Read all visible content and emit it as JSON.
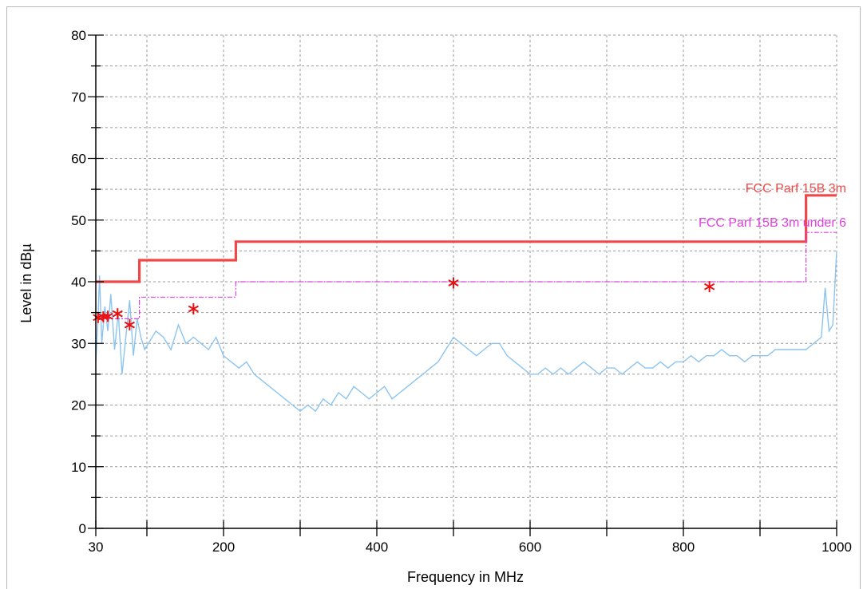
{
  "chart_data": {
    "type": "line",
    "xlabel": "Frequency in MHz",
    "ylabel": "Level in dBµ",
    "x_ticks": [
      {
        "value": 30,
        "label": "30"
      },
      {
        "value": 200,
        "label": "200"
      },
      {
        "value": 400,
        "label": "400"
      },
      {
        "value": 600,
        "label": "600"
      },
      {
        "value": 800,
        "label": "800"
      },
      {
        "value": 1000,
        "label": "1000"
      }
    ],
    "y_ticks": [
      0,
      10,
      20,
      30,
      40,
      50,
      60,
      70,
      80
    ],
    "xlim": [
      30,
      1000
    ],
    "ylim": [
      0,
      80
    ],
    "grid": true,
    "colors": {
      "spectrum": "#8cc4f0",
      "limit": "#f04848",
      "limit_under": "#e040e0",
      "peaks": "#e81010"
    },
    "series": [
      {
        "name": "FCC Parf 15B 3m",
        "style": "step",
        "x": [
          30,
          88,
          88,
          216,
          216,
          960,
          960,
          1000
        ],
        "y": [
          40,
          40,
          43.5,
          43.5,
          46.5,
          46.5,
          54,
          54
        ]
      },
      {
        "name": "FCC Parf 15B 3m under 6",
        "style": "dashdot-step",
        "x": [
          30,
          88,
          88,
          216,
          216,
          960,
          960,
          1000
        ],
        "y": [
          34,
          34,
          37.5,
          37.5,
          40,
          40,
          48,
          48
        ]
      },
      {
        "name": "",
        "style": "spectrum",
        "x": [
          30,
          33,
          35,
          38,
          42,
          46,
          50,
          55,
          60,
          65,
          70,
          75,
          80,
          85,
          90,
          95,
          100,
          110,
          120,
          130,
          140,
          150,
          160,
          170,
          180,
          190,
          200,
          210,
          220,
          230,
          240,
          250,
          260,
          270,
          280,
          290,
          300,
          310,
          320,
          330,
          340,
          350,
          360,
          370,
          380,
          390,
          400,
          410,
          420,
          430,
          440,
          450,
          460,
          470,
          480,
          490,
          500,
          510,
          520,
          530,
          540,
          550,
          560,
          570,
          580,
          590,
          600,
          610,
          620,
          630,
          640,
          650,
          660,
          670,
          680,
          690,
          700,
          710,
          720,
          730,
          740,
          750,
          760,
          770,
          780,
          790,
          800,
          810,
          820,
          830,
          840,
          850,
          860,
          870,
          880,
          890,
          900,
          910,
          920,
          930,
          940,
          950,
          960,
          970,
          980,
          985,
          990,
          995,
          1000
        ],
        "y": [
          27,
          34,
          41,
          30,
          36,
          32,
          38,
          29,
          35,
          25,
          31,
          37,
          28,
          34,
          31,
          29,
          30,
          32,
          31,
          29,
          33,
          30,
          31,
          30,
          29,
          31,
          28,
          27,
          26,
          27,
          25,
          24,
          23,
          22,
          21,
          20,
          19,
          20,
          19,
          21,
          20,
          22,
          21,
          23,
          22,
          21,
          22,
          23,
          21,
          22,
          23,
          24,
          25,
          26,
          27,
          29,
          31,
          30,
          29,
          28,
          29,
          30,
          30,
          28,
          27,
          26,
          25,
          25,
          26,
          25,
          26,
          25,
          26,
          27,
          26,
          25,
          26,
          26,
          25,
          26,
          27,
          26,
          26,
          27,
          26,
          27,
          27,
          28,
          27,
          28,
          28,
          29,
          28,
          28,
          27,
          28,
          28,
          28,
          29,
          29,
          29,
          29,
          29,
          30,
          31,
          39,
          32,
          33,
          45
        ]
      }
    ],
    "peaks": {
      "x": [
        33,
        40,
        46,
        59,
        75,
        160,
        500,
        834
      ],
      "y": [
        34.2,
        34.3,
        34.4,
        34.8,
        33.0,
        35.6,
        39.8,
        39.2
      ]
    }
  }
}
